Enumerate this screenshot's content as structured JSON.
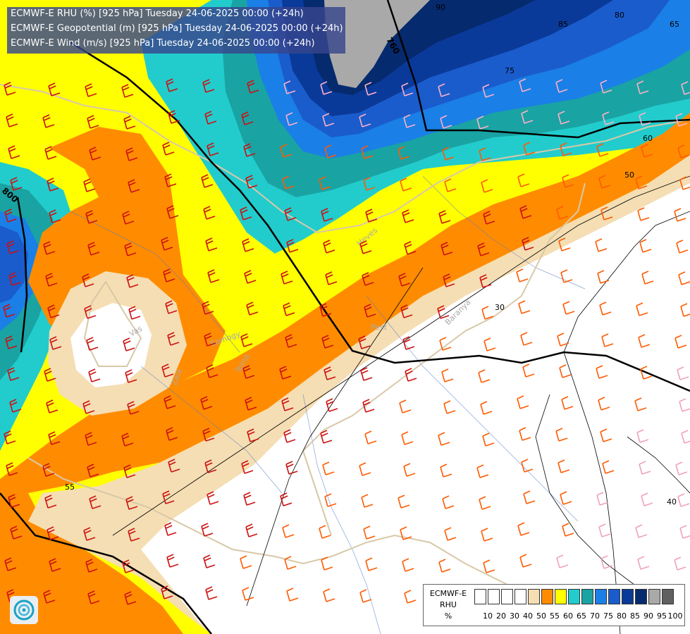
{
  "header": {
    "lines": [
      "ECMWF-E RHU (%) [925 hPa] Tuesday 24-06-2025 00:00 (+24h)",
      "ECMWF-E Geopotential (m) [925 hPa] Tuesday 24-06-2025 00:00 (+24h)",
      "ECMWF-E Wind (m/s) [925 hPa] Tuesday 24-06-2025 00:00 (+24h)"
    ]
  },
  "legend": {
    "title": [
      "ECMWF-E",
      "RHU",
      "%"
    ],
    "ticks": [
      "10",
      "20",
      "30",
      "40",
      "50",
      "55",
      "60",
      "65",
      "70",
      "75",
      "80",
      "85",
      "90",
      "95",
      "100"
    ],
    "colors": [
      "#ffffff",
      "#ffffff",
      "#ffffff",
      "#ffffff",
      "#f5deb3",
      "#ff8c00",
      "#ffff00",
      "#22cccc",
      "#1aa3a3",
      "#1a7fe6",
      "#1a5ccc",
      "#0a3a99",
      "#062a6e",
      "#a9a9a9",
      "#606060"
    ]
  },
  "contour_labels": {
    "geopotential": [
      "760",
      "800"
    ],
    "rhu": [
      "30",
      "40",
      "50",
      "55",
      "60",
      "65",
      "75",
      "80",
      "85",
      "90"
    ]
  },
  "place_labels": [
    "Pest",
    "Heves",
    "Vas",
    "Zala",
    "Somogy",
    "Tolna",
    "Baranya"
  ],
  "colors": {
    "info_box": "#37468c",
    "barb_red": "#cc1111",
    "barb_orange": "#ff5a00",
    "barb_pink": "#f0a0c0",
    "geopotential_line": "#000000",
    "border_line": "#d8c8a8",
    "river_line": "#5577cc"
  },
  "logo_icon": "ecmwf-logo-icon"
}
